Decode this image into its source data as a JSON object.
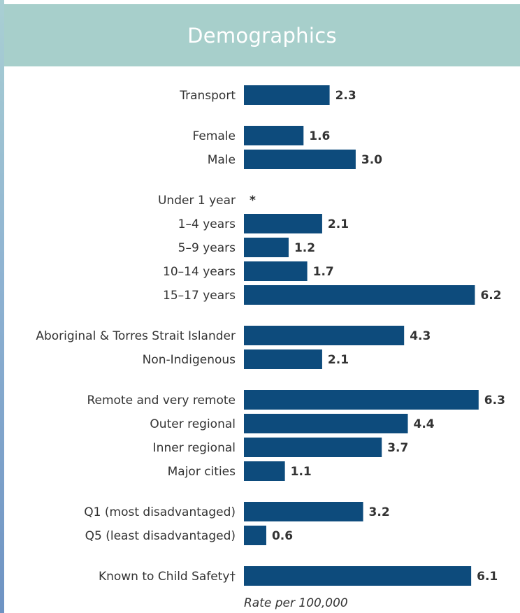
{
  "header": {
    "title": "Demographics"
  },
  "chart_data": {
    "type": "bar",
    "orientation": "horizontal",
    "xlabel": "Rate per 100,000",
    "xlim": [
      0,
      6.3
    ],
    "bar_color": "#0d4b7c",
    "header_color": "#a7cfcb",
    "categories": [
      "Transport",
      "Female",
      "Male",
      "Under 1 year",
      "1–4 years",
      "5–9 years",
      "10–14 years",
      "15–17 years",
      "Aboriginal & Torres Strait Islander",
      "Non-Indigenous",
      "Remote and very remote",
      "Outer regional",
      "Inner regional",
      "Major cities",
      "Q1 (most disadvantaged)",
      "Q5 (least disadvantaged)",
      "Known to Child Safety†"
    ],
    "values": [
      2.3,
      1.6,
      3.0,
      null,
      2.1,
      1.2,
      1.7,
      6.2,
      4.3,
      2.1,
      6.3,
      4.4,
      3.7,
      1.1,
      3.2,
      0.6,
      6.1
    ],
    "value_labels": [
      "2.3",
      "1.6",
      "3.0",
      "*",
      "2.1",
      "1.2",
      "1.7",
      "6.2",
      "4.3",
      "2.1",
      "6.3",
      "4.4",
      "3.7",
      "1.1",
      "3.2",
      "0.6",
      "6.1"
    ],
    "groups": [
      [
        0
      ],
      [
        1,
        2
      ],
      [
        3,
        4,
        5,
        6,
        7
      ],
      [
        8,
        9
      ],
      [
        10,
        11,
        12,
        13
      ],
      [
        14,
        15
      ],
      [
        16
      ]
    ]
  }
}
